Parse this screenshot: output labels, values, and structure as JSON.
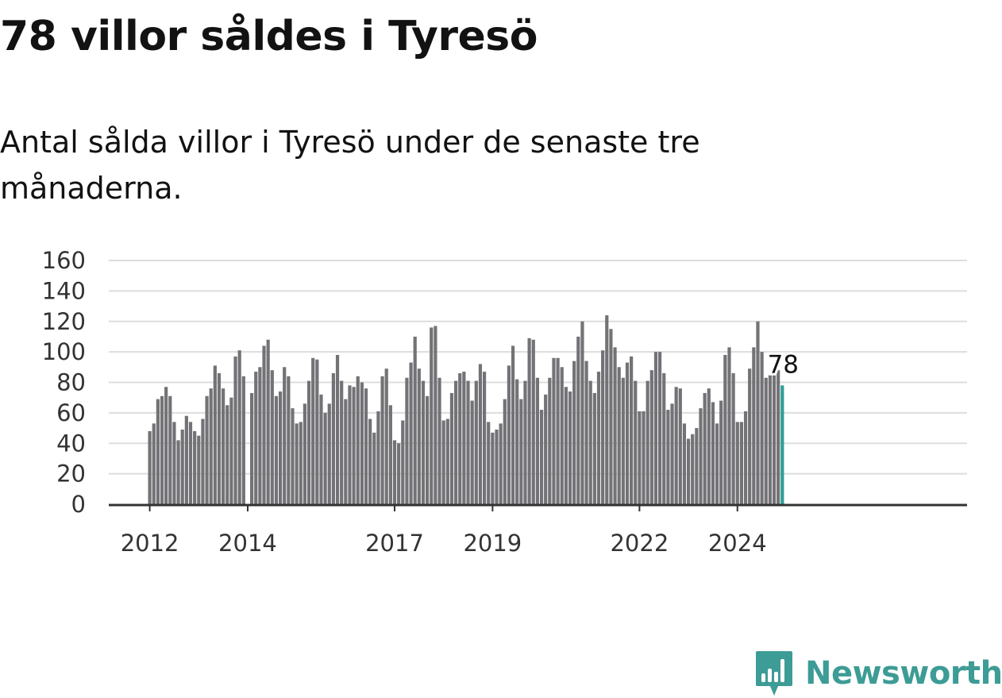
{
  "title": "78 villor såldes i Tyresö",
  "subtitle": "Antal sålda villor i Tyresö under de senaste tre månaderna.",
  "brand": {
    "name": "Newsworthy",
    "color": "#3d9c95",
    "icon": "bar-chart-logo-icon"
  },
  "colors": {
    "bar": "#737276",
    "highlight": "#2ba096",
    "grid": "#dddddd",
    "axis": "#333333"
  },
  "chart_data": {
    "type": "bar",
    "title": "",
    "xlabel": "",
    "ylabel": "",
    "ylim": [
      0,
      160
    ],
    "yticks": [
      0,
      20,
      40,
      60,
      80,
      100,
      120,
      140,
      160
    ],
    "grid": true,
    "x_axis": "date",
    "x": [
      "2012-01",
      "2012-02",
      "2012-03",
      "2012-04",
      "2012-05",
      "2012-06",
      "2012-07",
      "2012-08",
      "2012-09",
      "2012-10",
      "2012-11",
      "2012-12",
      "2013-01",
      "2013-02",
      "2013-03",
      "2013-04",
      "2013-05",
      "2013-06",
      "2013-07",
      "2013-08",
      "2013-09",
      "2013-10",
      "2013-11",
      "2013-12",
      "2014-01",
      "2014-02",
      "2014-03",
      "2014-04",
      "2014-05",
      "2014-06",
      "2014-07",
      "2014-08",
      "2014-09",
      "2014-10",
      "2014-11",
      "2014-12",
      "2015-01",
      "2015-02",
      "2015-03",
      "2015-04",
      "2015-05",
      "2015-06",
      "2015-07",
      "2015-08",
      "2015-09",
      "2015-10",
      "2015-11",
      "2015-12",
      "2016-01",
      "2016-02",
      "2016-03",
      "2016-04",
      "2016-05",
      "2016-06",
      "2016-07",
      "2016-08",
      "2016-09",
      "2016-10",
      "2016-11",
      "2016-12",
      "2017-01",
      "2017-02",
      "2017-03",
      "2017-04",
      "2017-05",
      "2017-06",
      "2017-07",
      "2017-08",
      "2017-09",
      "2017-10",
      "2017-11",
      "2017-12",
      "2018-01",
      "2018-02",
      "2018-03",
      "2018-04",
      "2018-05",
      "2018-06",
      "2018-07",
      "2018-08",
      "2018-09",
      "2018-10",
      "2018-11",
      "2018-12",
      "2019-01",
      "2019-02",
      "2019-03",
      "2019-04",
      "2019-05",
      "2019-06",
      "2019-07",
      "2019-08",
      "2019-09",
      "2019-10",
      "2019-11",
      "2019-12",
      "2020-01",
      "2020-02",
      "2020-03",
      "2020-04",
      "2020-05",
      "2020-06",
      "2020-07",
      "2020-08",
      "2020-09",
      "2020-10",
      "2020-11",
      "2020-12",
      "2021-01",
      "2021-02",
      "2021-03",
      "2021-04",
      "2021-05",
      "2021-06",
      "2021-07",
      "2021-08",
      "2021-09",
      "2021-10",
      "2021-11",
      "2021-12",
      "2022-01",
      "2022-02",
      "2022-03",
      "2022-04",
      "2022-05",
      "2022-06",
      "2022-07",
      "2022-08",
      "2022-09",
      "2022-10",
      "2022-11",
      "2022-12",
      "2023-01",
      "2023-02",
      "2023-03",
      "2023-04",
      "2023-05",
      "2023-06",
      "2023-07",
      "2023-08",
      "2023-09",
      "2023-10",
      "2023-11",
      "2023-12",
      "2024-01",
      "2024-02",
      "2024-03",
      "2024-04",
      "2024-05",
      "2024-06",
      "2024-07",
      "2024-08",
      "2024-09",
      "2024-10",
      "2024-11",
      "2024-12"
    ],
    "values": [
      48,
      53,
      69,
      71,
      77,
      71,
      54,
      42,
      49,
      58,
      54,
      48,
      45,
      56,
      71,
      76,
      91,
      86,
      76,
      65,
      70,
      97,
      101,
      84,
      null,
      73,
      87,
      90,
      104,
      108,
      88,
      71,
      74,
      90,
      84,
      63,
      53,
      54,
      66,
      81,
      96,
      95,
      72,
      60,
      66,
      86,
      98,
      81,
      69,
      78,
      77,
      84,
      80,
      76,
      56,
      47,
      61,
      84,
      89,
      65,
      42,
      40,
      55,
      83,
      93,
      110,
      89,
      81,
      71,
      116,
      117,
      83,
      55,
      56,
      73,
      81,
      86,
      87,
      81,
      68,
      81,
      92,
      87,
      54,
      47,
      49,
      53,
      69,
      91,
      104,
      82,
      69,
      81,
      109,
      108,
      83,
      62,
      72,
      83,
      96,
      96,
      90,
      77,
      74,
      94,
      110,
      120,
      94,
      81,
      73,
      87,
      101,
      124,
      115,
      103,
      90,
      83,
      93,
      97,
      81,
      61,
      61,
      81,
      88,
      100,
      100,
      86,
      62,
      66,
      77,
      76,
      53,
      43,
      46,
      50,
      63,
      73,
      76,
      67,
      53,
      68,
      98,
      103,
      86,
      54,
      54,
      61,
      89,
      103,
      120,
      100,
      83,
      85,
      86,
      88,
      78
    ],
    "highlight_last": true,
    "last_value_label": "78",
    "x_tick_labels": [
      {
        "x": "2012-01",
        "label": "2012"
      },
      {
        "x": "2014-01",
        "label": "2014"
      },
      {
        "x": "2017-01",
        "label": "2017"
      },
      {
        "x": "2019-01",
        "label": "2019"
      },
      {
        "x": "2022-01",
        "label": "2022"
      },
      {
        "x": "2024-01",
        "label": "2024"
      }
    ]
  }
}
